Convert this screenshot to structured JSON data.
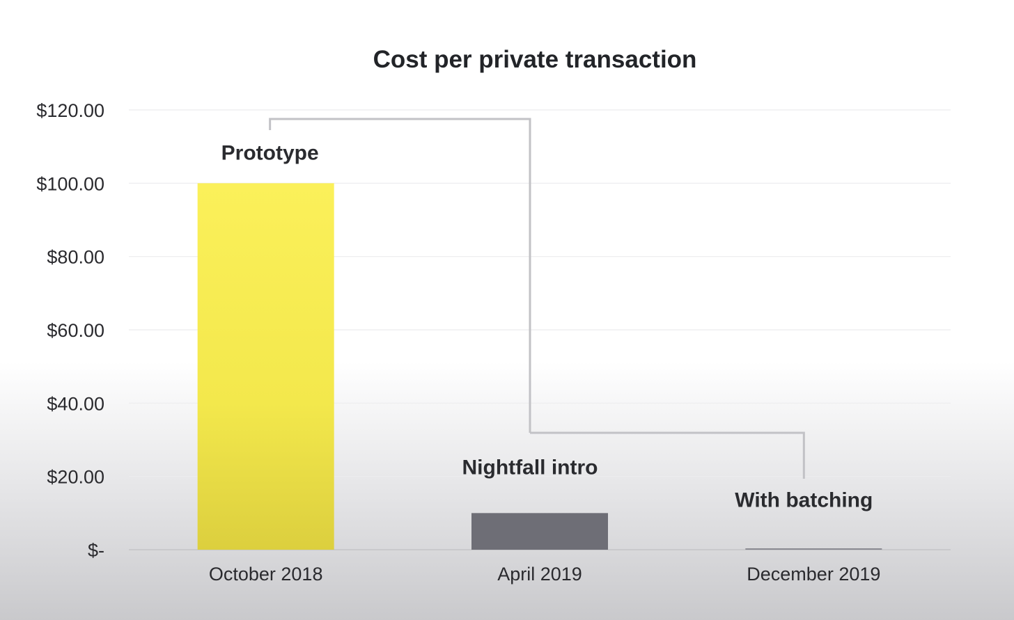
{
  "chart_data": {
    "type": "bar",
    "title": "Cost per private transaction",
    "xlabel": "",
    "ylabel": "",
    "categories": [
      "October 2018",
      "April 2019",
      "December 2019"
    ],
    "values": [
      100,
      10,
      0.3
    ],
    "ylim": [
      0,
      120
    ],
    "yticks": [
      0,
      20,
      40,
      60,
      80,
      100,
      120
    ],
    "ytick_labels": [
      "$-",
      "$20.00",
      "$40.00",
      "$60.00",
      "$80.00",
      "$100.00",
      "$120.00"
    ],
    "bar_colors": [
      "#f5e94a",
      "#6e6e76",
      "#8a8a92"
    ],
    "annotations": [
      "Prototype",
      "Nightfall intro",
      "With batching"
    ],
    "grid": true,
    "legend": "none"
  },
  "colors": {
    "accent_yellow": "#f5e94a",
    "bar_gray": "#6e6e76",
    "text": "#222428",
    "connector": "#c2c2c6"
  }
}
